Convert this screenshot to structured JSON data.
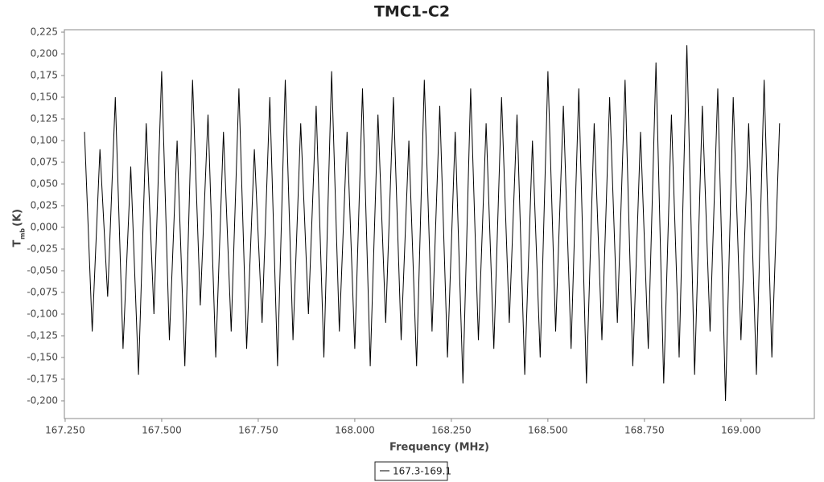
{
  "chart_data": {
    "type": "line",
    "title": "TMC1-C2",
    "x_label": "Frequency (MHz)",
    "y_label": {
      "symbol": "T",
      "subscript": "mb",
      "unit": "(K)"
    },
    "xlim": [
      167.248,
      169.19
    ],
    "ylim": [
      -0.2204,
      0.2278
    ],
    "xticks": [
      {
        "value": 167.25,
        "label": "167.250"
      },
      {
        "value": 167.5,
        "label": "167.500"
      },
      {
        "value": 167.75,
        "label": "167.750"
      },
      {
        "value": 168,
        "label": "168.000"
      },
      {
        "value": 168.25,
        "label": "168.250"
      },
      {
        "value": 168.5,
        "label": "168.500"
      },
      {
        "value": 168.75,
        "label": "168.750"
      },
      {
        "value": 169,
        "label": "169.000"
      }
    ],
    "yticks": [
      {
        "value": 0.225,
        "label": "0,225"
      },
      {
        "value": 0.2,
        "label": "0,200"
      },
      {
        "value": 0.175,
        "label": "0,175"
      },
      {
        "value": 0.15,
        "label": "0,150"
      },
      {
        "value": 0.125,
        "label": "0,125"
      },
      {
        "value": 0.1,
        "label": "0,100"
      },
      {
        "value": 0.075,
        "label": "0,075"
      },
      {
        "value": 0.05,
        "label": "0,050"
      },
      {
        "value": 0.025,
        "label": "0,025"
      },
      {
        "value": 0,
        "label": "0,000"
      },
      {
        "value": -0.025,
        "label": "-0,025"
      },
      {
        "value": -0.05,
        "label": "-0,050"
      },
      {
        "value": -0.075,
        "label": "-0,075"
      },
      {
        "value": -0.1,
        "label": "-0,100"
      },
      {
        "value": -0.125,
        "label": "-0,125"
      },
      {
        "value": -0.15,
        "label": "-0,150"
      },
      {
        "value": -0.175,
        "label": "-0,175"
      },
      {
        "value": -0.2,
        "label": "-0,200"
      }
    ],
    "grid": false,
    "legend": "bottom",
    "x": [
      167.3,
      167.32,
      167.34,
      167.36,
      167.38,
      167.4,
      167.42,
      167.44,
      167.46,
      167.48,
      167.5,
      167.52,
      167.54,
      167.56,
      167.58,
      167.6,
      167.62,
      167.64,
      167.66,
      167.68,
      167.7,
      167.72,
      167.74,
      167.76,
      167.78,
      167.8,
      167.82,
      167.84,
      167.86,
      167.88,
      167.9,
      167.92,
      167.94,
      167.96,
      167.98,
      168,
      168.02,
      168.04,
      168.06,
      168.08,
      168.1,
      168.12,
      168.14,
      168.16,
      168.18,
      168.2,
      168.22,
      168.24,
      168.26,
      168.28,
      168.3,
      168.32,
      168.34,
      168.36,
      168.38,
      168.4,
      168.42,
      168.44,
      168.46,
      168.48,
      168.5,
      168.52,
      168.54,
      168.56,
      168.58,
      168.6,
      168.62,
      168.64,
      168.66,
      168.68,
      168.7,
      168.72,
      168.74,
      168.76,
      168.78,
      168.8,
      168.82,
      168.84,
      168.86,
      168.88,
      168.9,
      168.92,
      168.94,
      168.96,
      168.98,
      169,
      169.02,
      169.04,
      169.06,
      169.08,
      169.1
    ],
    "series": [
      {
        "name": "167.3-169.1",
        "color": "#000000",
        "values": [
          0.11,
          -0.12,
          0.09,
          -0.08,
          0.15,
          -0.14,
          0.07,
          -0.17,
          0.12,
          -0.1,
          0.18,
          -0.13,
          0.1,
          -0.16,
          0.17,
          -0.09,
          0.13,
          -0.15,
          0.11,
          -0.12,
          0.16,
          -0.14,
          0.09,
          -0.11,
          0.15,
          -0.16,
          0.17,
          -0.13,
          0.12,
          -0.1,
          0.14,
          -0.15,
          0.18,
          -0.12,
          0.11,
          -0.14,
          0.16,
          -0.16,
          0.13,
          -0.11,
          0.15,
          -0.13,
          0.1,
          -0.16,
          0.17,
          -0.12,
          0.14,
          -0.15,
          0.11,
          -0.18,
          0.16,
          -0.13,
          0.12,
          -0.14,
          0.15,
          -0.11,
          0.13,
          -0.17,
          0.1,
          -0.15,
          0.18,
          -0.12,
          0.14,
          -0.14,
          0.16,
          -0.18,
          0.12,
          -0.13,
          0.15,
          -0.11,
          0.17,
          -0.16,
          0.11,
          -0.14,
          0.19,
          -0.18,
          0.13,
          -0.15,
          0.21,
          -0.17,
          0.14,
          -0.12,
          0.16,
          -0.2,
          0.15,
          -0.13,
          0.12,
          -0.17,
          0.17,
          -0.15,
          0.12
        ]
      }
    ]
  }
}
